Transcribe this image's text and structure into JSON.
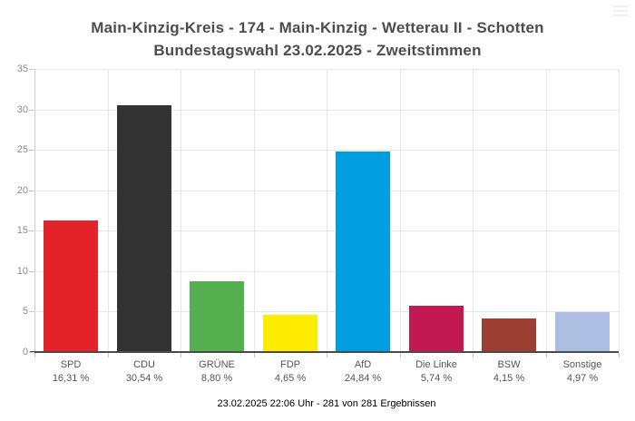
{
  "title": {
    "line1": "Main-Kinzig-Kreis - 174 - Main-Kinzig - Wetterau II - Schotten",
    "line2": "Bundestagswahl 23.02.2025  - Zweitstimmen"
  },
  "footer": "23.02.2025 22:06 Uhr - 281 von 281 Ergebnissen",
  "icons": {
    "export_menu": "hamburger-menu"
  },
  "chart_data": {
    "type": "bar",
    "title": "Main-Kinzig-Kreis - 174 - Main-Kinzig - Wetterau II - Schotten — Bundestagswahl 23.02.2025 - Zweitstimmen",
    "categories": [
      "SPD",
      "CDU",
      "GRÜNE",
      "FDP",
      "AfD",
      "Die Linke",
      "BSW",
      "Sonstige"
    ],
    "values": [
      16.31,
      30.54,
      8.8,
      4.65,
      24.84,
      5.74,
      4.15,
      4.97
    ],
    "value_labels": [
      "16,31 %",
      "30,54 %",
      "8,80 %",
      "4,65 %",
      "24,84 %",
      "5,74 %",
      "4,15 %",
      "4,97 %"
    ],
    "bar_colors": [
      "#e42229",
      "#333333",
      "#55b04f",
      "#ffec00",
      "#009ee0",
      "#c31952",
      "#9d3e33",
      "#aebee2"
    ],
    "xlabel": "",
    "ylabel": "",
    "ylim": [
      0,
      35
    ],
    "yticks": [
      0,
      5,
      10,
      15,
      20,
      25,
      30,
      35
    ],
    "grid": true,
    "legend": false,
    "legend_position": "none"
  }
}
